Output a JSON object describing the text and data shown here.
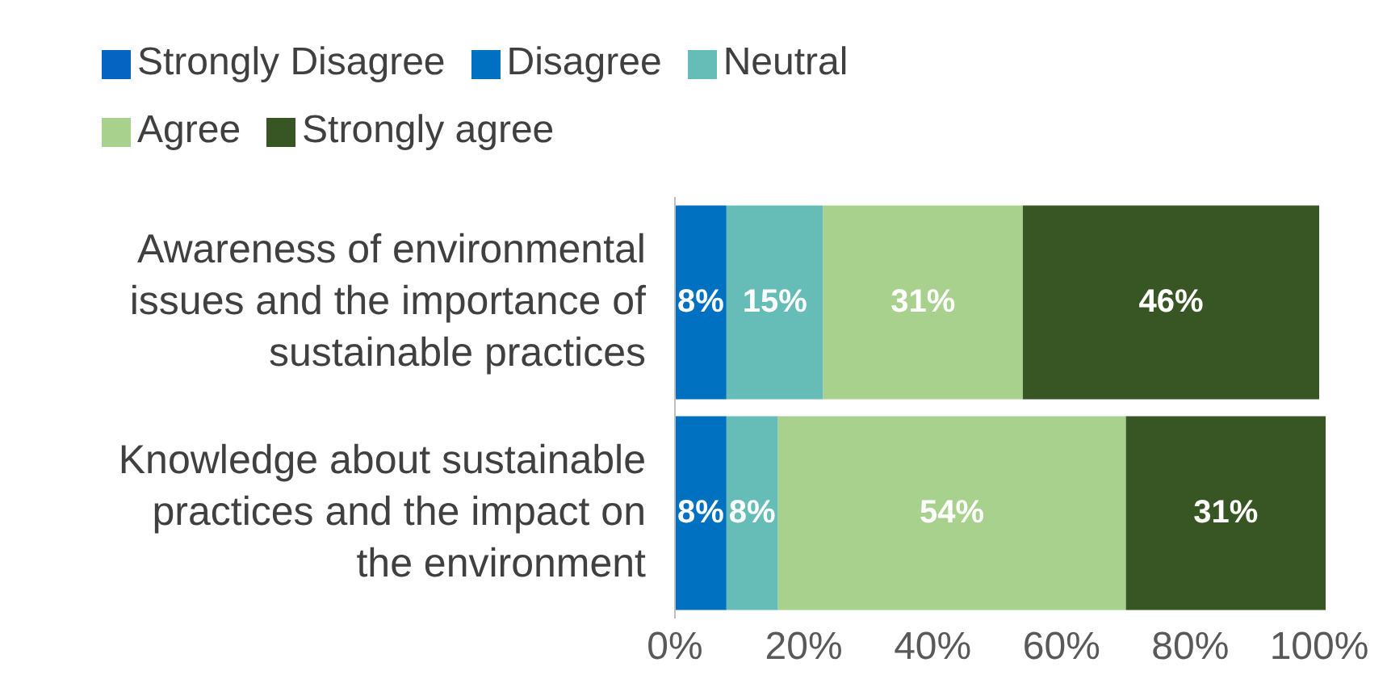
{
  "chart_data": {
    "type": "bar",
    "orientation": "horizontal",
    "stacked": true,
    "categories": [
      "Awareness of environmental issues and the importance of sustainable practices",
      "Knowledge about sustainable practices and the impact on the environment"
    ],
    "series": [
      {
        "name": "Strongly Disagree",
        "color": "#0563c1",
        "values": [
          0,
          0
        ],
        "value_labels": [
          null,
          null
        ]
      },
      {
        "name": "Disagree",
        "color": "#0070c0",
        "values": [
          8,
          8
        ],
        "value_labels": [
          "8%",
          "8%"
        ]
      },
      {
        "name": "Neutral",
        "color": "#66bdb8",
        "values": [
          15,
          8
        ],
        "value_labels": [
          "15%",
          "8%"
        ]
      },
      {
        "name": "Agree",
        "color": "#a9d18e",
        "values": [
          31,
          54
        ],
        "value_labels": [
          "31%",
          "54%"
        ]
      },
      {
        "name": "Strongly agree",
        "color": "#375623",
        "values": [
          46,
          31
        ],
        "value_labels": [
          "46%",
          "31%"
        ]
      }
    ],
    "xlim": [
      0,
      101
    ],
    "xticks": [
      {
        "value": 0,
        "label": "0%"
      },
      {
        "value": 20,
        "label": "20%"
      },
      {
        "value": 40,
        "label": "40%"
      },
      {
        "value": 60,
        "label": "60%"
      },
      {
        "value": 80,
        "label": "80%"
      },
      {
        "value": 100,
        "label": "100%"
      }
    ],
    "grid": false,
    "legend": "top"
  }
}
